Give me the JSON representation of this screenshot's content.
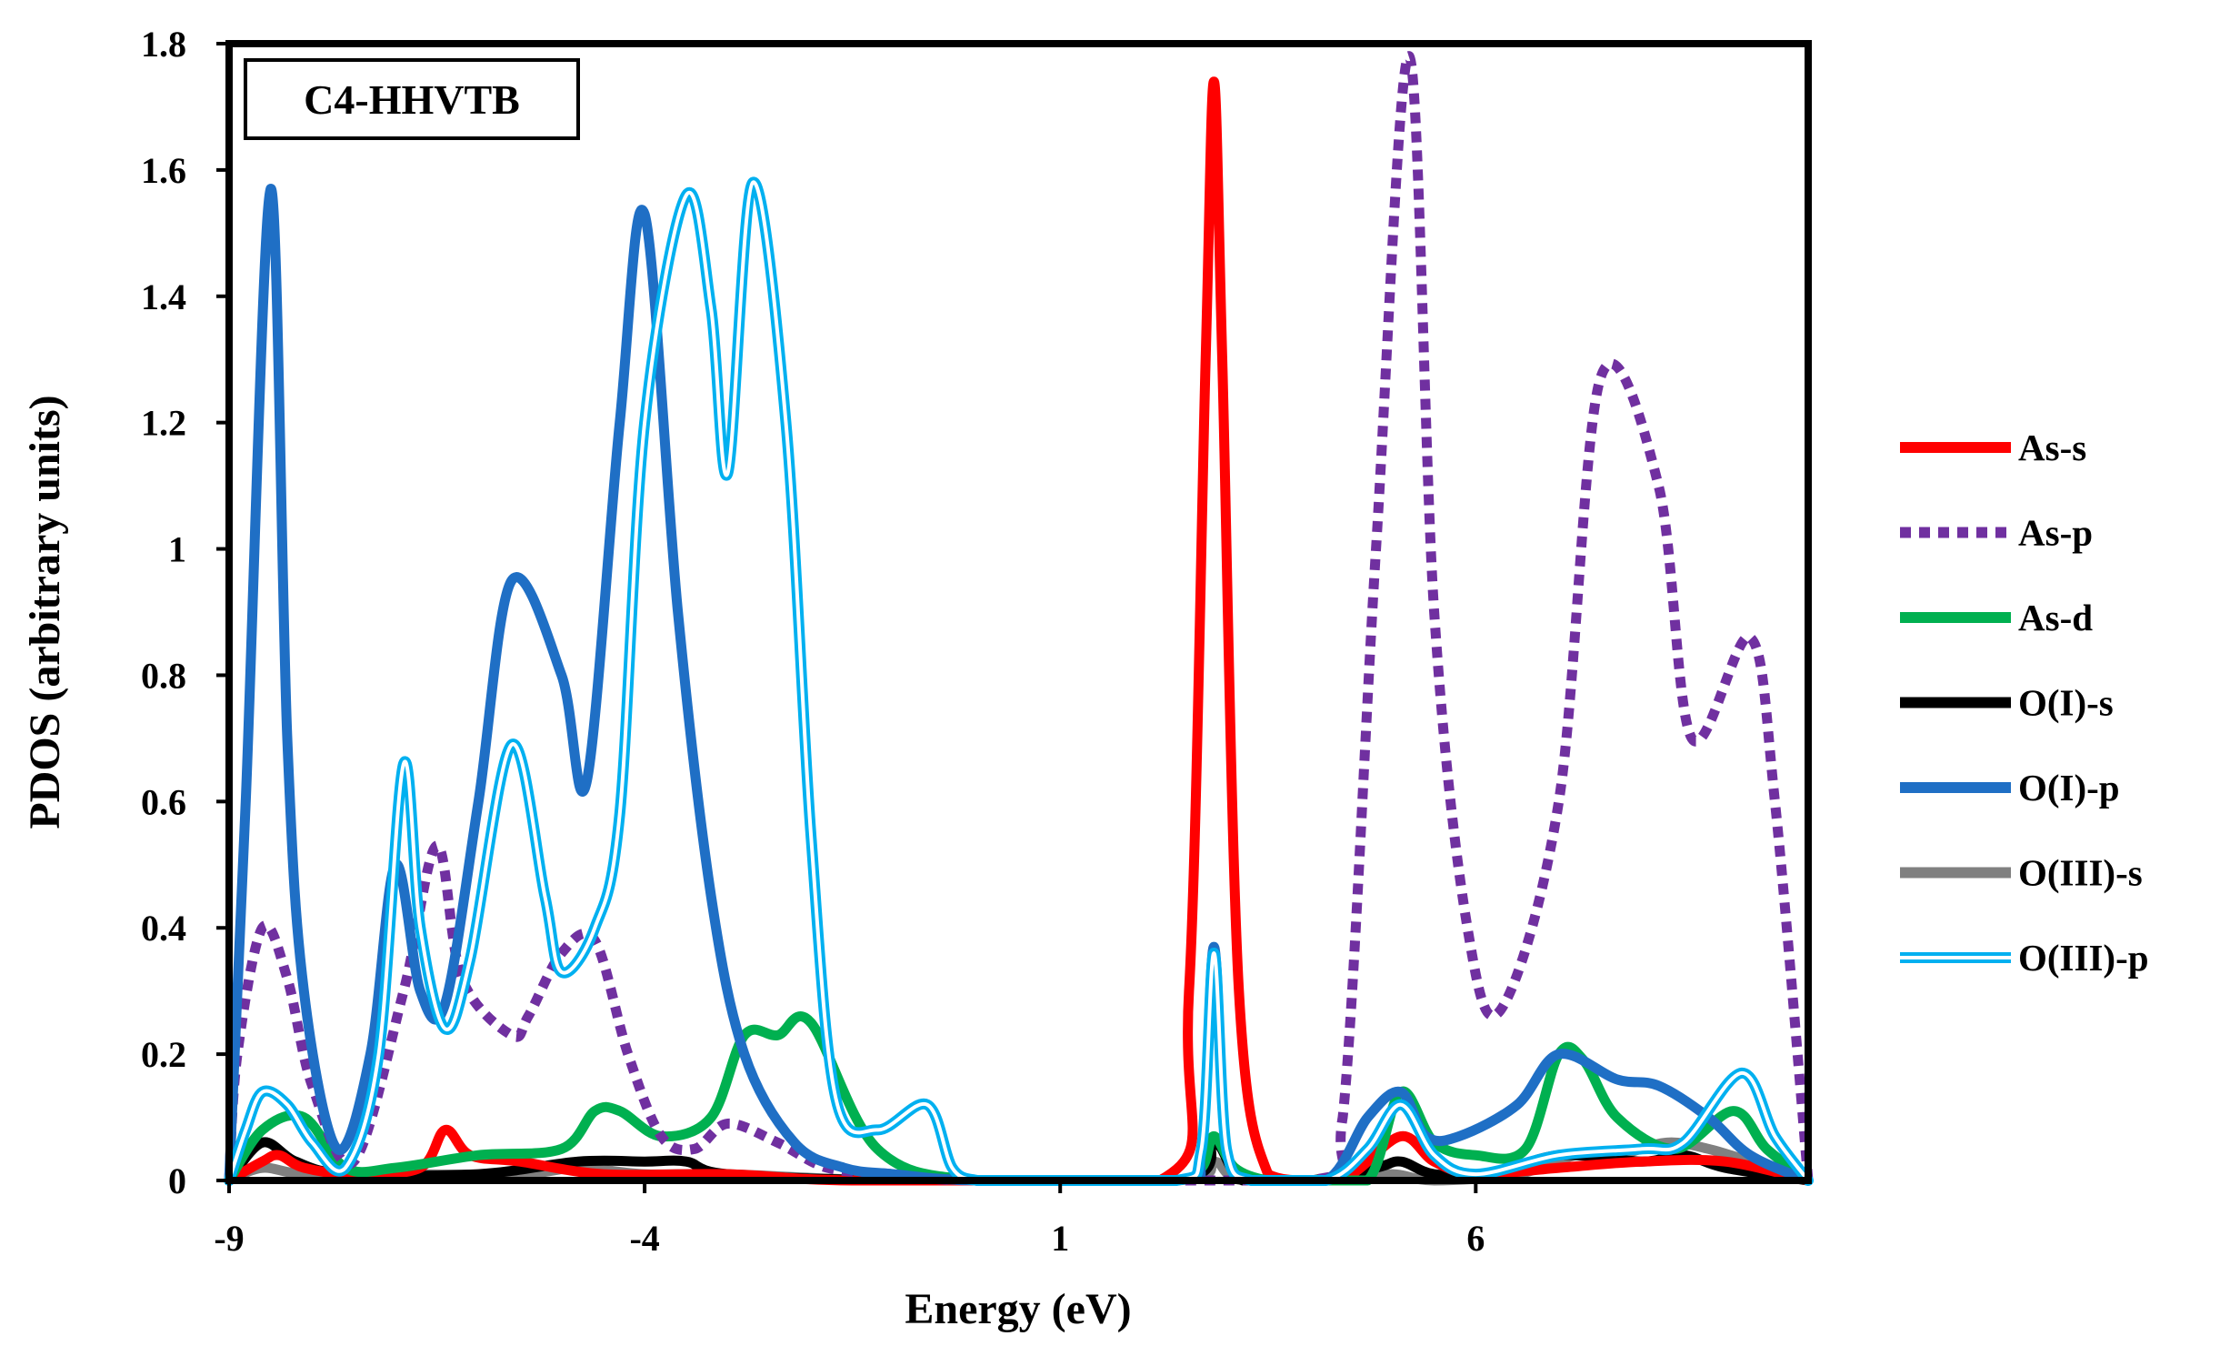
{
  "chart_data": {
    "type": "line",
    "title": "",
    "annotation": "C4-HHVTB",
    "xlabel": "Energy (eV)",
    "ylabel": "PDOS (arbitrary units)",
    "xlim": [
      -9,
      10
    ],
    "ylim": [
      0,
      1.8
    ],
    "x_ticks": [
      -9,
      -4,
      1,
      6
    ],
    "x_tick_labels": [
      "-9",
      "-4",
      "1",
      "6"
    ],
    "y_ticks": [
      0,
      0.2,
      0.4,
      0.6,
      0.8,
      1,
      1.2,
      1.4,
      1.6,
      1.8
    ],
    "y_tick_labels": [
      "0",
      "0.2",
      "0.4",
      "0.6",
      "0.8",
      "1",
      "1.2",
      "1.4",
      "1.6",
      "1.8"
    ],
    "grid": false,
    "legend_position": "right",
    "series": [
      {
        "name": "As-s",
        "color": "#ff0000",
        "style": "solid",
        "x": [
          -9,
          -8.6,
          -8.4,
          -8.1,
          -7.5,
          -6.7,
          -6.4,
          -6.1,
          -5.5,
          -4.5,
          -3,
          -1.5,
          2.2,
          2.55,
          2.75,
          2.85,
          2.95,
          3.15,
          3.5,
          4,
          4.5,
          5.1,
          5.5,
          6,
          7,
          8,
          9,
          10
        ],
        "values": [
          0,
          0.03,
          0.04,
          0.02,
          0.01,
          0.02,
          0.08,
          0.04,
          0.03,
          0.01,
          0.01,
          0,
          0,
          0.3,
          1.3,
          1.74,
          1.3,
          0.3,
          0.01,
          0,
          0.01,
          0.07,
          0.03,
          0.01,
          0.02,
          0.03,
          0.03,
          0
        ]
      },
      {
        "name": "As-p",
        "color": "#7030a0",
        "style": "dotted",
        "x": [
          -9,
          -8.9,
          -8.6,
          -8.3,
          -8,
          -7.5,
          -6.9,
          -6.5,
          -6.2,
          -5.6,
          -5.4,
          -5,
          -4.6,
          -4.2,
          -3.8,
          -3.4,
          -3,
          -2.4,
          -1.8,
          -1,
          0,
          4,
          4.4,
          4.8,
          5.2,
          5.5,
          5.9,
          6.3,
          7,
          7.5,
          8.2,
          8.6,
          9.3,
          9.6,
          10
        ],
        "values": [
          0,
          0.2,
          0.4,
          0.32,
          0.15,
          0.03,
          0.3,
          0.53,
          0.32,
          0.23,
          0.26,
          0.36,
          0.38,
          0.2,
          0.07,
          0.05,
          0.09,
          0.06,
          0.02,
          0.01,
          0,
          0,
          0.1,
          1.0,
          1.78,
          0.9,
          0.4,
          0.27,
          0.6,
          1.27,
          1.1,
          0.7,
          0.86,
          0.6,
          0
        ]
      },
      {
        "name": "As-d",
        "color": "#00b050",
        "style": "solid",
        "x": [
          -9,
          -8.6,
          -8.1,
          -7.6,
          -7,
          -6,
          -5,
          -4.6,
          -4.3,
          -3.8,
          -3.2,
          -2.8,
          -2.4,
          -2,
          -1.2,
          0,
          2.3,
          2.7,
          2.85,
          3.1,
          3.5,
          4,
          4.7,
          5.1,
          5.5,
          6,
          6.6,
          7,
          7.3,
          7.7,
          8.4,
          9.1,
          9.5,
          10
        ],
        "values": [
          0,
          0.08,
          0.1,
          0.02,
          0.02,
          0.04,
          0.05,
          0.11,
          0.11,
          0.07,
          0.1,
          0.23,
          0.23,
          0.25,
          0.05,
          0,
          0,
          0.02,
          0.07,
          0.02,
          0,
          0,
          0,
          0.14,
          0.06,
          0.04,
          0.05,
          0.2,
          0.19,
          0.1,
          0.05,
          0.11,
          0.05,
          0
        ]
      },
      {
        "name": "O(I)-s",
        "color": "#000000",
        "style": "solid",
        "x": [
          -9,
          -8.6,
          -8.2,
          -7.6,
          -6,
          -4.8,
          -4,
          -3.5,
          -3,
          -1,
          2.4,
          2.85,
          3.2,
          4,
          4.8,
          5.1,
          5.5,
          6.2,
          7,
          8,
          8.5,
          9,
          10
        ],
        "values": [
          0,
          0.06,
          0.03,
          0.01,
          0.01,
          0.03,
          0.03,
          0.03,
          0.01,
          0,
          0,
          0.06,
          0,
          0,
          0.02,
          0.03,
          0.01,
          0.01,
          0.04,
          0.03,
          0.04,
          0.02,
          0
        ]
      },
      {
        "name": "O(I)-p",
        "color": "#1f6fc5",
        "style": "solid",
        "x": [
          -9,
          -8.8,
          -8.5,
          -8.3,
          -8.1,
          -7.7,
          -7.3,
          -7,
          -6.7,
          -6.4,
          -6,
          -5.6,
          -5,
          -4.7,
          -4.3,
          -4,
          -3.6,
          -3.2,
          -2.8,
          -2.2,
          -1.6,
          -1,
          0,
          2.4,
          2.7,
          2.85,
          3,
          3.3,
          4.2,
          4.7,
          5.1,
          5.4,
          5.8,
          6.5,
          7,
          7.7,
          8.2,
          8.8,
          9.3,
          10
        ],
        "values": [
          0,
          0.6,
          1.57,
          0.7,
          0.3,
          0.05,
          0.2,
          0.5,
          0.3,
          0.28,
          0.6,
          0.95,
          0.8,
          0.63,
          1.2,
          1.53,
          0.9,
          0.45,
          0.2,
          0.06,
          0.02,
          0.01,
          0,
          0,
          0.05,
          0.37,
          0.05,
          0,
          0,
          0.1,
          0.14,
          0.07,
          0.07,
          0.12,
          0.2,
          0.16,
          0.15,
          0.1,
          0.04,
          0
        ]
      },
      {
        "name": "O(III)-s",
        "color": "#808080",
        "style": "solid",
        "x": [
          -9,
          -8.6,
          -8.1,
          -7,
          -5.5,
          -4.8,
          -4,
          -3,
          -1,
          2.4,
          2.85,
          3.2,
          4.5,
          5,
          5.5,
          6.5,
          7.2,
          7.7,
          8.3,
          8.8,
          9.3,
          10
        ],
        "values": [
          0,
          0.02,
          0.01,
          0.01,
          0.01,
          0.02,
          0.01,
          0.01,
          0,
          0,
          0.03,
          0,
          0,
          0.01,
          0,
          0.01,
          0.04,
          0.04,
          0.06,
          0.05,
          0.03,
          0
        ]
      },
      {
        "name": "O(III)-p",
        "color": "#00b0f0",
        "style": "double",
        "x": [
          -9,
          -8.8,
          -8.6,
          -8.3,
          -8,
          -7.6,
          -7.2,
          -6.9,
          -6.7,
          -6.4,
          -6.1,
          -5.6,
          -5.2,
          -5,
          -4.6,
          -4.3,
          -4,
          -3.5,
          -3.2,
          -3,
          -2.7,
          -2.3,
          -2,
          -1.7,
          -1.2,
          -0.6,
          -0.3,
          0,
          0.3,
          0.8,
          2.4,
          2.7,
          2.85,
          3,
          3.3,
          4.2,
          4.7,
          5.1,
          5.5,
          6,
          7,
          8,
          8.5,
          9.2,
          9.6,
          10
        ],
        "values": [
          0,
          0.08,
          0.14,
          0.12,
          0.06,
          0.02,
          0.2,
          0.66,
          0.4,
          0.24,
          0.35,
          0.69,
          0.45,
          0.33,
          0.4,
          0.58,
          1.2,
          1.56,
          1.38,
          1.12,
          1.58,
          1.2,
          0.55,
          0.13,
          0.08,
          0.12,
          0.02,
          0,
          0,
          0,
          0,
          0.05,
          0.36,
          0.05,
          0,
          0,
          0.05,
          0.12,
          0.04,
          0.01,
          0.04,
          0.05,
          0.06,
          0.17,
          0.07,
          0
        ]
      }
    ]
  }
}
